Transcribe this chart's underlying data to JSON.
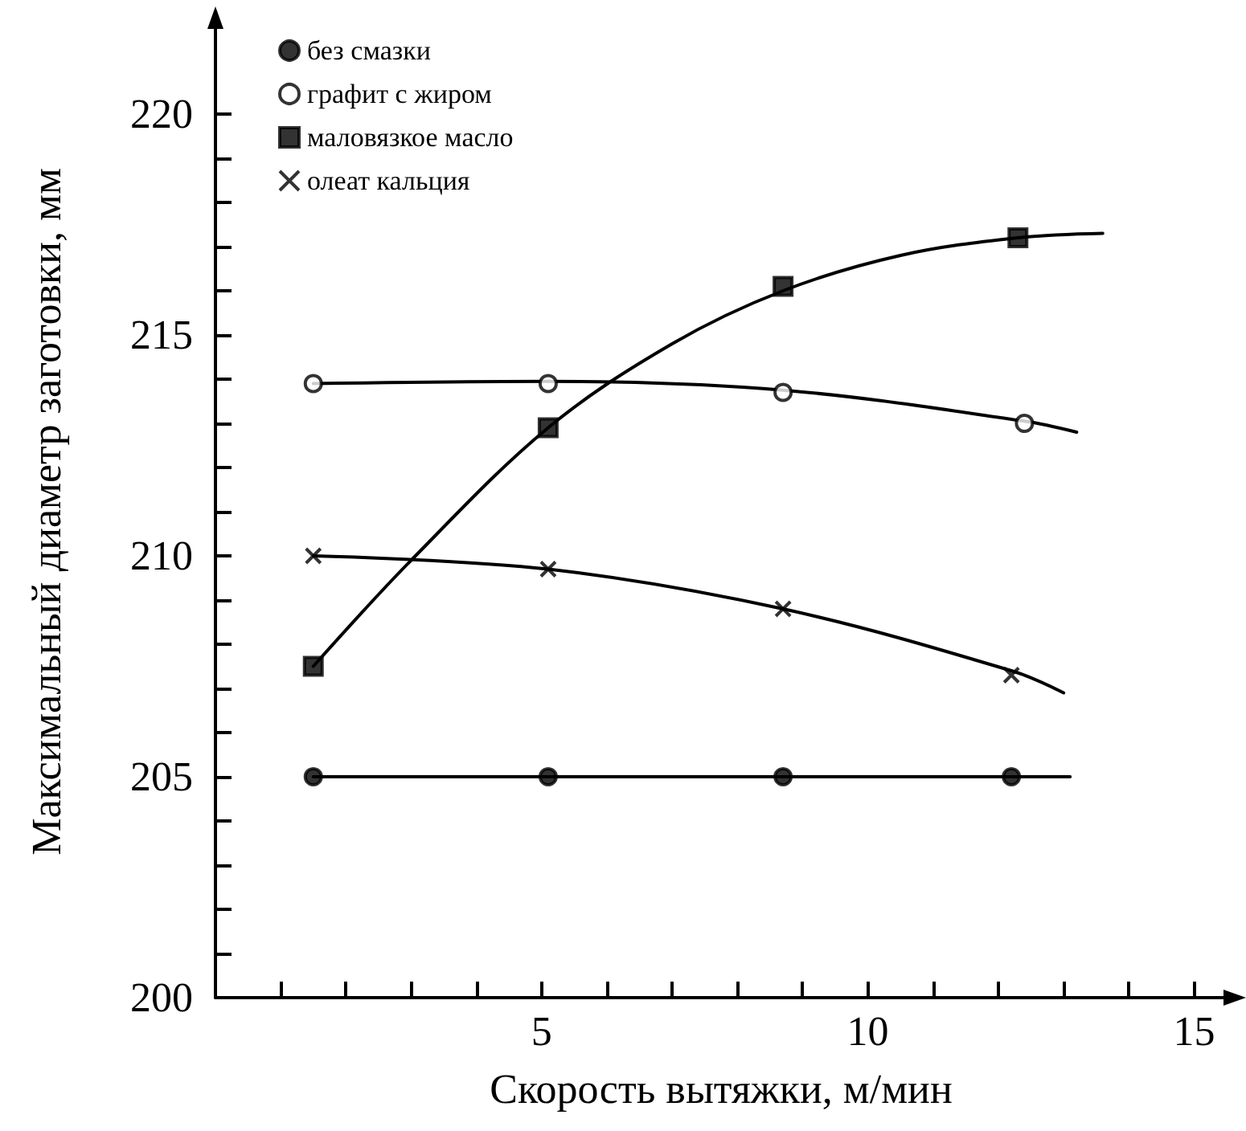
{
  "chart_data": {
    "type": "scatter",
    "xlabel": "Скорость вытяжки, м/мин",
    "ylabel": "Максимальный диаметр заготовки, мм",
    "xlim": [
      0,
      15.5
    ],
    "ylim": [
      200,
      222
    ],
    "xticks": [
      {
        "value": 1,
        "label": null
      },
      {
        "value": 2,
        "label": null
      },
      {
        "value": 3,
        "label": null
      },
      {
        "value": 4,
        "label": null
      },
      5,
      {
        "value": 6,
        "label": null
      },
      {
        "value": 7,
        "label": null
      },
      {
        "value": 8,
        "label": null
      },
      {
        "value": 9,
        "label": null
      },
      10,
      {
        "value": 11,
        "label": null
      },
      {
        "value": 12,
        "label": null
      },
      {
        "value": 13,
        "label": null
      },
      {
        "value": 14,
        "label": null
      },
      15
    ],
    "yticks": [
      200,
      {
        "value": 201,
        "label": null
      },
      {
        "value": 202,
        "label": null
      },
      {
        "value": 203,
        "label": null
      },
      {
        "value": 204,
        "label": null
      },
      205,
      {
        "value": 206,
        "label": null
      },
      {
        "value": 207,
        "label": null
      },
      {
        "value": 208,
        "label": null
      },
      {
        "value": 209,
        "label": null
      },
      210,
      {
        "value": 211,
        "label": null
      },
      {
        "value": 212,
        "label": null
      },
      {
        "value": 213,
        "label": null
      },
      {
        "value": 214,
        "label": null
      },
      215,
      {
        "value": 216,
        "label": null
      },
      {
        "value": 217,
        "label": null
      },
      {
        "value": 218,
        "label": null
      },
      {
        "value": 219,
        "label": null
      },
      220
    ],
    "grid": false,
    "legend": "top left",
    "series": [
      {
        "name": "без смазки",
        "marker": "circle",
        "color": "#000000",
        "x": [
          1.5,
          5.1,
          8.7,
          12.2
        ],
        "values": [
          205,
          205,
          205,
          205
        ]
      },
      {
        "name": "графит с жиром",
        "marker": "circle",
        "color": "#ffffff",
        "x": [
          1.5,
          5.1,
          8.7,
          12.4
        ],
        "values": [
          213.9,
          213.9,
          213.7,
          213.0
        ]
      },
      {
        "name": "маловязкое масло",
        "marker": "square",
        "color": "#000000",
        "x": [
          1.5,
          5.1,
          8.7,
          12.3
        ],
        "values": [
          207.5,
          212.9,
          216.1,
          217.2
        ]
      },
      {
        "name": "олеат кальция",
        "marker": "cross",
        "color": "#000000",
        "x": [
          1.5,
          5.1,
          8.7,
          12.2
        ],
        "values": [
          210.0,
          209.7,
          208.8,
          207.3
        ]
      },
      {
        "type": "line",
        "color": "#000000",
        "x": [
          1.5,
          13.1
        ],
        "values": [
          205,
          205
        ]
      },
      {
        "type": "line",
        "color": "#000000",
        "x": [
          1.5,
          5.1,
          8.7,
          12.4,
          13.2
        ],
        "values": [
          213.9,
          213.95,
          213.75,
          213.05,
          212.8
        ]
      },
      {
        "type": "line",
        "color": "#000000",
        "x": [
          1.5,
          3,
          5.1,
          7,
          8.7,
          10.5,
          12.3,
          13.6
        ],
        "values": [
          207.5,
          209.9,
          212.9,
          214.8,
          216.0,
          216.8,
          217.2,
          217.3
        ]
      },
      {
        "type": "line",
        "color": "#000000",
        "x": [
          1.5,
          5.1,
          8.7,
          12.2,
          13.0
        ],
        "values": [
          210.0,
          209.7,
          208.8,
          207.4,
          206.9
        ]
      }
    ]
  }
}
